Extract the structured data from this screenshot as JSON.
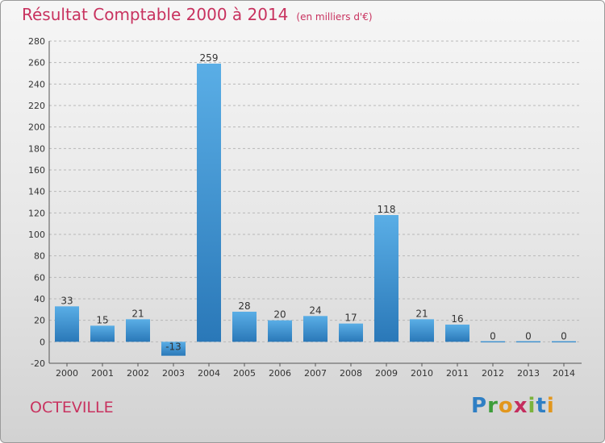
{
  "title": "Résultat Comptable 2000 à 2014",
  "subtitle": "(en milliers d'€)",
  "town": "OCTEVILLE",
  "logo": [
    "P",
    "r",
    "o",
    "x",
    "i",
    "t",
    "i"
  ],
  "colors": {
    "title": "#c8325f",
    "bar_top": "#5aaee6",
    "bar_bottom": "#2a78b8",
    "grid": "#b8b8b8"
  },
  "chart_data": {
    "type": "bar",
    "categories": [
      "2000",
      "2001",
      "2002",
      "2003",
      "2004",
      "2005",
      "2006",
      "2007",
      "2008",
      "2009",
      "2010",
      "2011",
      "2012",
      "2013",
      "2014"
    ],
    "values": [
      33,
      15,
      21,
      -13,
      259,
      28,
      20,
      24,
      17,
      118,
      21,
      16,
      0,
      0,
      0
    ],
    "value_labels": [
      "33",
      "15",
      "21",
      "-13",
      "259",
      "28",
      "20",
      "24",
      "17",
      "118",
      "21",
      "16",
      "0",
      "0",
      "0"
    ],
    "yticks": [
      -20,
      0,
      20,
      40,
      60,
      80,
      100,
      120,
      140,
      160,
      180,
      200,
      220,
      240,
      260,
      280
    ],
    "ylim": [
      -20,
      280
    ],
    "title": "Résultat Comptable 2000 à 2014",
    "xlabel": "",
    "ylabel": ""
  }
}
